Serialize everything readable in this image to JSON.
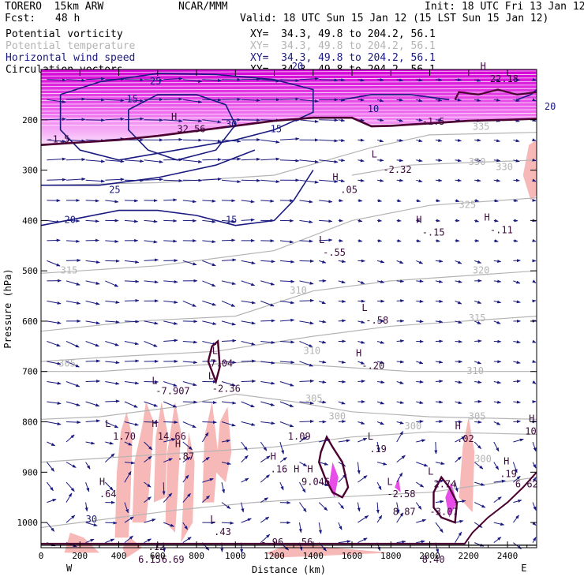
{
  "header": {
    "model": "TORERO  15km ARW",
    "fcst_label": "Fcst:",
    "fcst_value": "48 h",
    "center": "NCAR/MMM",
    "init": "Init: 18 UTC Fri 13 Jan 12",
    "valid": "Valid: 18 UTC Sun 15 Jan 12 (15 LST Sun 15 Jan 12)"
  },
  "legend": [
    {
      "label": "Potential vorticity",
      "xy": "XY=  34.3, 49.8 to 204.2, 56.1",
      "color": "#000000"
    },
    {
      "label": "Potential temperature",
      "xy": "XY=  34.3, 49.8 to 204.2, 56.1",
      "color": "#b4b4b4"
    },
    {
      "label": "Horizontal wind speed",
      "xy": "XY=  34.3, 49.8 to 204.2, 56.1",
      "color": "#1a1a80"
    },
    {
      "label": "Circulation vectors",
      "xy": "XY=  34.3, 49.8 to 204.2, 56.1",
      "color": "#000000"
    }
  ],
  "colors": {
    "theta": "#b4b4b4",
    "wind": "#1a1a80",
    "pv_fill_low": "#f7b8b8",
    "pv_fill_high": "#e84de8",
    "pv_line": "#4a0030",
    "vectors": "#1a1a80"
  },
  "chart_data": {
    "type": "cross-section",
    "xlabel": "Distance (km)",
    "ylabel": "Pressure (hPa)",
    "xlim": [
      0,
      2550
    ],
    "ylim": [
      1050,
      100
    ],
    "x_ticks": [
      0,
      200,
      400,
      600,
      800,
      1000,
      1200,
      1400,
      1600,
      1800,
      2000,
      2200,
      2400
    ],
    "y_ticks": [
      200,
      300,
      400,
      500,
      600,
      700,
      800,
      900,
      1000
    ],
    "west_label": "W",
    "east_label": "E",
    "theta_labels": [
      {
        "x": 100,
        "p": 505,
        "text": "315"
      },
      {
        "x": 90,
        "p": 690,
        "text": "305"
      },
      {
        "x": 1280,
        "p": 545,
        "text": "310"
      },
      {
        "x": 1350,
        "p": 665,
        "text": "310"
      },
      {
        "x": 1360,
        "p": 760,
        "text": "305"
      },
      {
        "x": 1480,
        "p": 795,
        "text": "300"
      },
      {
        "x": 2220,
        "p": 220,
        "text": "335"
      },
      {
        "x": 2200,
        "p": 290,
        "text": "330"
      },
      {
        "x": 2340,
        "p": 300,
        "text": "330"
      },
      {
        "x": 2150,
        "p": 375,
        "text": "325"
      },
      {
        "x": 2220,
        "p": 505,
        "text": "320"
      },
      {
        "x": 2200,
        "p": 600,
        "text": "315"
      },
      {
        "x": 2190,
        "p": 705,
        "text": "310"
      },
      {
        "x": 2200,
        "p": 795,
        "text": "305"
      },
      {
        "x": 2230,
        "p": 880,
        "text": "300"
      },
      {
        "x": 1870,
        "p": 815,
        "text": "300"
      }
    ],
    "wind_labels": [
      {
        "x": 560,
        "p": 130,
        "text": "25"
      },
      {
        "x": 1290,
        "p": 100,
        "text": "20"
      },
      {
        "x": 440,
        "p": 165,
        "text": "15"
      },
      {
        "x": 950,
        "p": 215,
        "text": "30"
      },
      {
        "x": 1180,
        "p": 225,
        "text": "15"
      },
      {
        "x": 350,
        "p": 345,
        "text": "25"
      },
      {
        "x": 120,
        "p": 405,
        "text": "20"
      },
      {
        "x": 950,
        "p": 405,
        "text": "15"
      },
      {
        "x": 230,
        "p": 1000,
        "text": "30"
      },
      {
        "x": 1680,
        "p": 185,
        "text": "10"
      },
      {
        "x": 2590,
        "p": 180,
        "text": "20"
      }
    ],
    "pv_labels": [
      {
        "x": 30,
        "p": 245,
        "text": "-1.5"
      },
      {
        "x": 670,
        "p": 200,
        "text": "H"
      },
      {
        "x": 700,
        "p": 225,
        "text": "32.56"
      },
      {
        "x": 1960,
        "p": 210,
        "text": "-1.5"
      },
      {
        "x": 2260,
        "p": 100,
        "text": "H"
      },
      {
        "x": 2310,
        "p": 125,
        "text": "22.18"
      },
      {
        "x": 1700,
        "p": 275,
        "text": "L"
      },
      {
        "x": 1760,
        "p": 305,
        "text": "-2.32"
      },
      {
        "x": 1500,
        "p": 320,
        "text": "H"
      },
      {
        "x": 1540,
        "p": 345,
        "text": ".05"
      },
      {
        "x": 1930,
        "p": 405,
        "text": "H"
      },
      {
        "x": 1960,
        "p": 430,
        "text": "-.15"
      },
      {
        "x": 2280,
        "p": 400,
        "text": "H"
      },
      {
        "x": 2310,
        "p": 425,
        "text": "-.11"
      },
      {
        "x": 1430,
        "p": 445,
        "text": "L"
      },
      {
        "x": 1450,
        "p": 470,
        "text": "-.55"
      },
      {
        "x": 1650,
        "p": 580,
        "text": "L"
      },
      {
        "x": 1670,
        "p": 605,
        "text": "-.58"
      },
      {
        "x": 1620,
        "p": 670,
        "text": "H"
      },
      {
        "x": 1650,
        "p": 695,
        "text": "-.20"
      },
      {
        "x": 880,
        "p": 665,
        "text": "L"
      },
      {
        "x": 870,
        "p": 690,
        "text": "7.04"
      },
      {
        "x": 860,
        "p": 715,
        "text": "L"
      },
      {
        "x": 880,
        "p": 740,
        "text": "-2.36"
      },
      {
        "x": 570,
        "p": 725,
        "text": "L"
      },
      {
        "x": 590,
        "p": 745,
        "text": "-7.907"
      },
      {
        "x": 330,
        "p": 810,
        "text": "L"
      },
      {
        "x": 370,
        "p": 835,
        "text": "1.70"
      },
      {
        "x": 570,
        "p": 810,
        "text": "H"
      },
      {
        "x": 600,
        "p": 835,
        "text": "14.66"
      },
      {
        "x": 690,
        "p": 850,
        "text": "H"
      },
      {
        "x": 700,
        "p": 875,
        "text": ".87"
      },
      {
        "x": 1270,
        "p": 835,
        "text": "1.09"
      },
      {
        "x": 1180,
        "p": 875,
        "text": "H"
      },
      {
        "x": 1180,
        "p": 900,
        "text": ".16"
      },
      {
        "x": 1300,
        "p": 900,
        "text": "H"
      },
      {
        "x": 1370,
        "p": 900,
        "text": "H"
      },
      {
        "x": 1340,
        "p": 925,
        "text": "9.046"
      },
      {
        "x": 1680,
        "p": 835,
        "text": "L"
      },
      {
        "x": 1690,
        "p": 860,
        "text": ".19"
      },
      {
        "x": 2130,
        "p": 815,
        "text": "H"
      },
      {
        "x": 2140,
        "p": 840,
        "text": ".02"
      },
      {
        "x": 2510,
        "p": 800,
        "text": "H"
      },
      {
        "x": 2490,
        "p": 825,
        "text": "10"
      },
      {
        "x": 2380,
        "p": 885,
        "text": "H"
      },
      {
        "x": 2360,
        "p": 910,
        "text": ".19"
      },
      {
        "x": 2440,
        "p": 930,
        "text": "6.62"
      },
      {
        "x": 1990,
        "p": 905,
        "text": "L"
      },
      {
        "x": 2020,
        "p": 930,
        "text": "2.74"
      },
      {
        "x": 1780,
        "p": 925,
        "text": "L"
      },
      {
        "x": 1780,
        "p": 950,
        "text": "-2.58"
      },
      {
        "x": 1810,
        "p": 985,
        "text": "8.87"
      },
      {
        "x": 2000,
        "p": 985,
        "text": "-3.07"
      },
      {
        "x": 300,
        "p": 925,
        "text": "H"
      },
      {
        "x": 300,
        "p": 950,
        "text": ".64"
      },
      {
        "x": 870,
        "p": 1000,
        "text": "L"
      },
      {
        "x": 890,
        "p": 1025,
        "text": ".43"
      },
      {
        "x": 1130,
        "p": 1045,
        "text": "-.96"
      },
      {
        "x": 1310,
        "p": 1045,
        "text": ".56"
      },
      {
        "x": 550,
        "p": 1055,
        "text": ".12"
      },
      {
        "x": 500,
        "p": 1080,
        "text": "6.15"
      },
      {
        "x": 620,
        "p": 1080,
        "text": "6.69"
      },
      {
        "x": 1960,
        "p": 1080,
        "text": "8.40"
      }
    ]
  }
}
